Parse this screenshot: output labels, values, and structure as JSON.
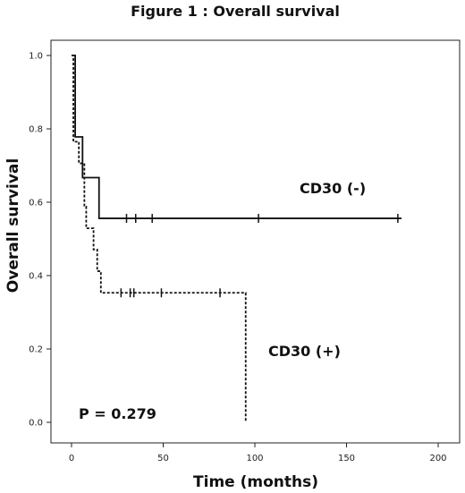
{
  "chart_data": {
    "type": "line",
    "title": "Figure 1 : Overall survival",
    "xlabel": "Time (months)",
    "ylabel": "Overall survival",
    "xlim": [
      0,
      200
    ],
    "ylim": [
      0.0,
      1.0
    ],
    "xticks": [
      "0",
      "50",
      "100",
      "150",
      "200"
    ],
    "yticks": [
      "0.0",
      "0.2",
      "0.4",
      "0.6",
      "0.8",
      "1.0"
    ],
    "grid": false,
    "legend": "none",
    "series": [
      {
        "name": "CD30 (-)",
        "style": "solid",
        "color": "#111111",
        "steps": [
          [
            0,
            1.0
          ],
          [
            2,
            0.778
          ],
          [
            6,
            0.667
          ],
          [
            15,
            0.556
          ],
          [
            180,
            0.556
          ]
        ],
        "censored": [
          [
            30,
            0.556
          ],
          [
            35,
            0.556
          ],
          [
            44,
            0.556
          ],
          [
            102,
            0.556
          ],
          [
            178,
            0.556
          ]
        ]
      },
      {
        "name": "CD30 (+)",
        "style": "dashed",
        "color": "#111111",
        "steps": [
          [
            0,
            1.0
          ],
          [
            1,
            0.765
          ],
          [
            4,
            0.706
          ],
          [
            7,
            0.588
          ],
          [
            8,
            0.529
          ],
          [
            12,
            0.471
          ],
          [
            14,
            0.412
          ],
          [
            16,
            0.353
          ],
          [
            95,
            0.353
          ],
          [
            95,
            0.0
          ]
        ],
        "censored": [
          [
            27,
            0.353
          ],
          [
            32,
            0.353
          ],
          [
            34,
            0.353
          ],
          [
            49,
            0.353
          ],
          [
            81,
            0.353
          ]
        ]
      }
    ],
    "annotations": {
      "cd30_neg_label": "CD30 (-)",
      "cd30_pos_label": "CD30 (+)",
      "p_value": "P = 0.279"
    }
  }
}
